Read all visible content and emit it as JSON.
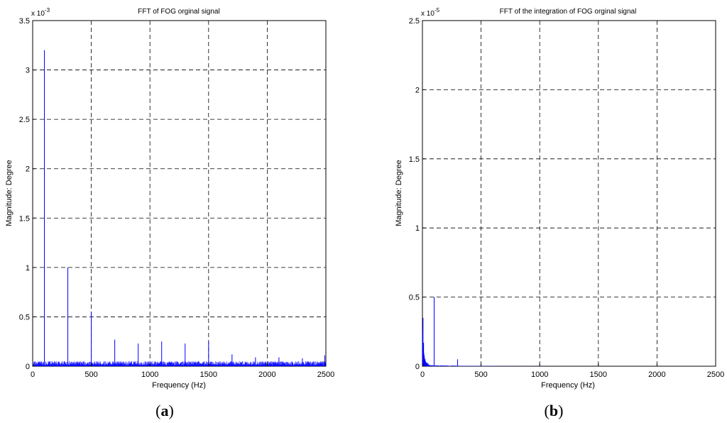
{
  "chart_data": [
    {
      "type": "line",
      "title": "FFT of FOG orginal signal",
      "xlabel": "Frequency (Hz)",
      "ylabel": "Magnitude: Degree",
      "y_multiplier": {
        "base": "x 10",
        "exp": "-3"
      },
      "xlim": [
        0,
        2500
      ],
      "ylim": [
        0,
        3.5
      ],
      "xticks": [
        "0",
        "500",
        "1000",
        "1500",
        "2000",
        "2500"
      ],
      "yticks": [
        "0",
        "0.5",
        "1",
        "1.5",
        "2",
        "2.5",
        "3",
        "3.5"
      ],
      "grid": true,
      "caption": {
        "open": "(",
        "letter": "a",
        "close": ")"
      },
      "series": [
        {
          "color": "#0000ff",
          "peaks": [
            {
              "x": 100,
              "y": 3.2
            },
            {
              "x": 300,
              "y": 1.0
            },
            {
              "x": 500,
              "y": 0.55
            },
            {
              "x": 700,
              "y": 0.27
            },
            {
              "x": 900,
              "y": 0.23
            },
            {
              "x": 1100,
              "y": 0.25
            },
            {
              "x": 1300,
              "y": 0.23
            },
            {
              "x": 1500,
              "y": 0.25
            },
            {
              "x": 1700,
              "y": 0.12
            },
            {
              "x": 1900,
              "y": 0.09
            },
            {
              "x": 2100,
              "y": 0.09
            },
            {
              "x": 2300,
              "y": 0.08
            },
            {
              "x": 2490,
              "y": 0.11
            }
          ],
          "noise_floor": 0.05
        }
      ]
    },
    {
      "type": "line",
      "title": "FFT of the integration of  FOG orginal signal",
      "xlabel": "Frequency (Hz)",
      "ylabel": "Magnitude: Degree",
      "y_multiplier": {
        "base": "x 10",
        "exp": "-5"
      },
      "xlim": [
        0,
        2500
      ],
      "ylim": [
        0,
        2.5
      ],
      "xticks": [
        "0",
        "500",
        "1000",
        "1500",
        "2000",
        "2500"
      ],
      "yticks": [
        "0",
        "0.5",
        "1",
        "1.5",
        "2",
        "2.5"
      ],
      "grid": true,
      "caption": {
        "open": "(",
        "letter": "b",
        "close": ")"
      },
      "series": [
        {
          "color": "#0000ff",
          "peaks": [
            {
              "x": 5,
              "y": 0.35
            },
            {
              "x": 10,
              "y": 0.17
            },
            {
              "x": 100,
              "y": 0.5
            },
            {
              "x": 300,
              "y": 0.05
            }
          ],
          "noise_floor": 0.01
        }
      ]
    }
  ]
}
